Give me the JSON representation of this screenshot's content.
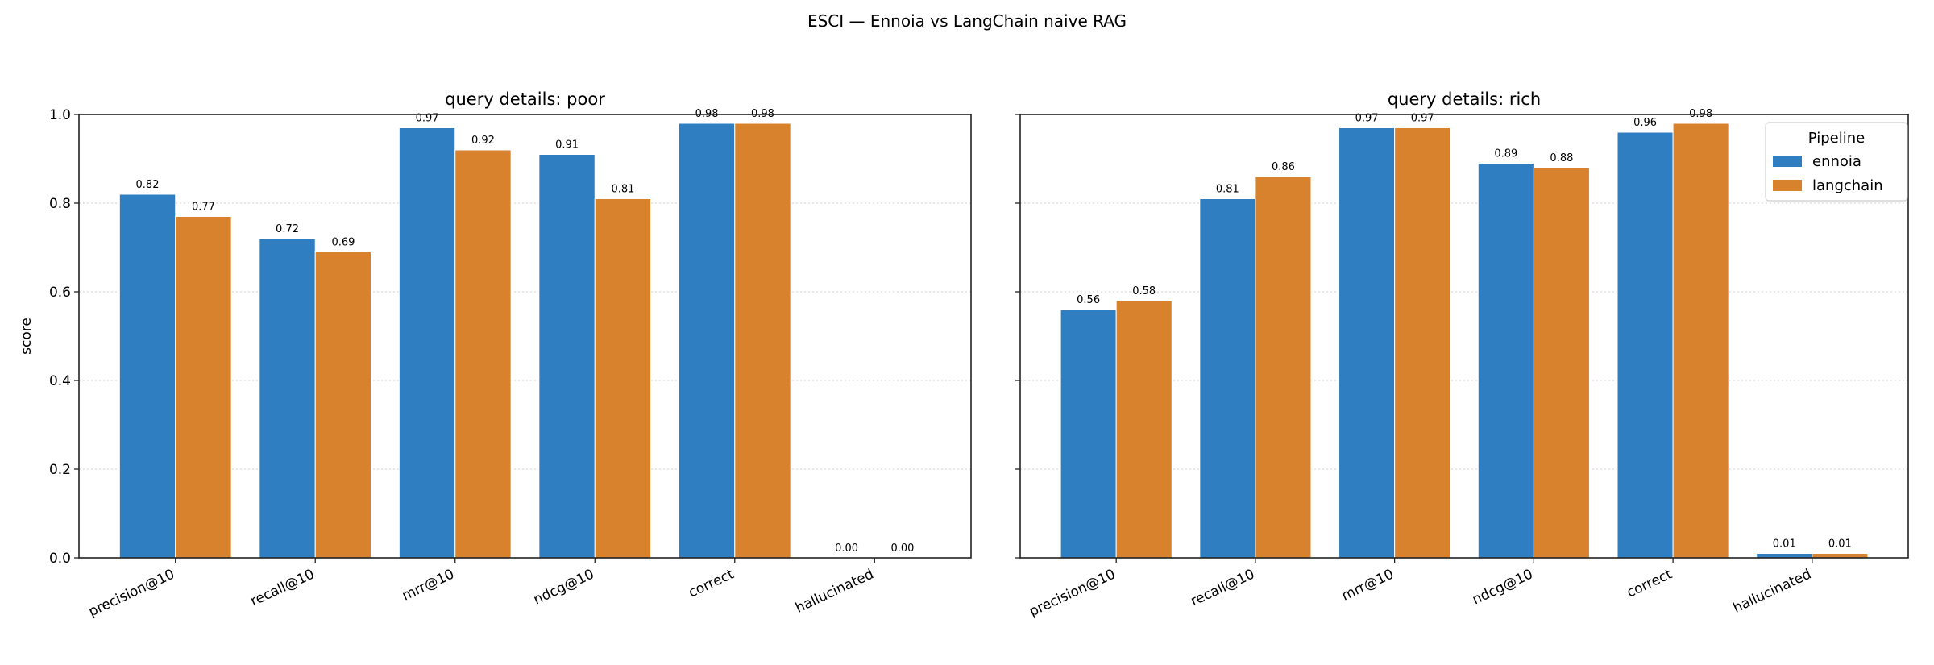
{
  "chart_data": {
    "suptitle": "ESCI — Ennoia vs LangChain naive RAG",
    "type": "bar",
    "colors": {
      "ennoia": "#2f7ec1",
      "langchain": "#d9822d"
    },
    "categories": [
      "precision@10",
      "recall@10",
      "mrr@10",
      "ndcg@10",
      "correct",
      "hallucinated"
    ],
    "ylabel": "score",
    "ylim": [
      0,
      1.0
    ],
    "yticks": [
      "0.0",
      "0.2",
      "0.4",
      "0.6",
      "0.8",
      "1.0"
    ],
    "grid": "y dotted",
    "legend": {
      "title": "Pipeline",
      "placement": "top-right",
      "entries": [
        "ennoia",
        "langchain"
      ]
    },
    "panels": [
      {
        "title": "query details: poor",
        "series": [
          {
            "name": "ennoia",
            "values": [
              0.82,
              0.72,
              0.97,
              0.91,
              0.98,
              0.0
            ]
          },
          {
            "name": "langchain",
            "values": [
              0.77,
              0.69,
              0.92,
              0.81,
              0.98,
              0.0
            ]
          }
        ]
      },
      {
        "title": "query details: rich",
        "series": [
          {
            "name": "ennoia",
            "values": [
              0.56,
              0.81,
              0.97,
              0.89,
              0.96,
              0.01
            ]
          },
          {
            "name": "langchain",
            "values": [
              0.58,
              0.86,
              0.97,
              0.88,
              0.98,
              0.01
            ]
          }
        ]
      }
    ]
  }
}
